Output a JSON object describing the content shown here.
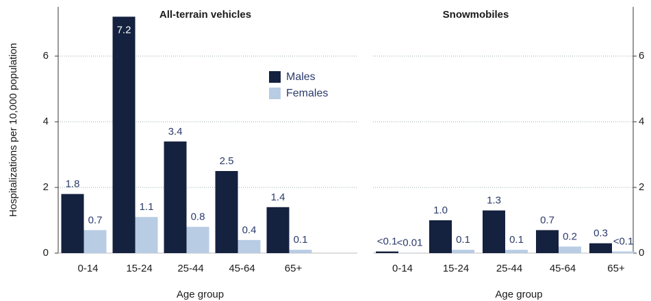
{
  "chart_data": [
    {
      "type": "bar",
      "title": "All-terrain vehicles",
      "ylabel": "Hospitalizations per 10,000 population",
      "xlabel": "Age group",
      "categories": [
        "0-14",
        "15-24",
        "25-44",
        "45-64",
        "65+"
      ],
      "series": [
        {
          "name": "Males",
          "color": "#14213f",
          "values": [
            1.8,
            7.2,
            3.4,
            2.5,
            1.4
          ]
        },
        {
          "name": "Females",
          "color": "#b8cce4",
          "values": [
            0.7,
            1.1,
            0.8,
            0.4,
            0.1
          ]
        }
      ],
      "ylim": [
        0,
        7.5
      ],
      "yticks": [
        0,
        2,
        4,
        6
      ],
      "y_axis_side": "left",
      "grid": true,
      "legend": true
    },
    {
      "type": "bar",
      "title": "Snowmobiles",
      "xlabel": "Age group",
      "categories": [
        "0-14",
        "15-24",
        "25-44",
        "45-64",
        "65+"
      ],
      "series": [
        {
          "name": "Males",
          "color": "#14213f",
          "values": [
            0.05,
            1.0,
            1.3,
            0.7,
            0.3
          ],
          "value_labels": [
            "<0.1",
            "1.0",
            "1.3",
            "0.7",
            "0.3"
          ]
        },
        {
          "name": "Females",
          "color": "#b8cce4",
          "values": [
            0.005,
            0.1,
            0.1,
            0.2,
            0.05
          ],
          "value_labels": [
            "<0.01",
            "0.1",
            "0.1",
            "0.2",
            "<0.1"
          ]
        }
      ],
      "ylim": [
        0,
        7.5
      ],
      "yticks": [
        0,
        2,
        4,
        6
      ],
      "y_axis_side": "right",
      "grid": true,
      "legend": false
    }
  ]
}
